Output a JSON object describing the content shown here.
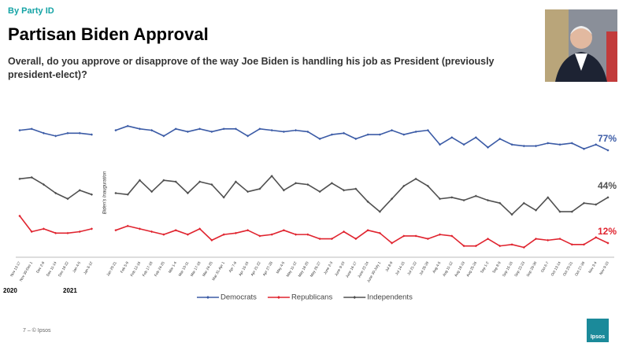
{
  "header": {
    "section": "By Party ID",
    "title": "Partisan Biden Approval",
    "question": "Overall, do you approve or disapprove of the way Joe Biden is handling his job as President (previously president-elect)?"
  },
  "chart_data": {
    "type": "line",
    "categories": [
      "Nov 13-17",
      "Nov 30-Dec 1",
      "Dec 2-8",
      "Dec 11-14",
      "Dec 18-22",
      "Jan 4-5",
      "Jan 8-12",
      null,
      "Jan 20-21",
      "Feb 5-9",
      "Feb 12-16",
      "Feb 17-18",
      "Feb 24-25",
      "Mar 1-4",
      "Mar 10-11",
      "Mar 17-18",
      "Mar 24-25",
      "Mar 31-Apr 1",
      "Apr 7-8",
      "Apr 15-16",
      "Apr 21-22",
      "Apr 27-28",
      "May 4-5",
      "May 11-12",
      "May 18-20",
      "May 26-27",
      "June 2-3",
      "June 9-10",
      "June 16-17",
      "June 22-24",
      "June 30-July 1",
      "Jul 8-9",
      "Jul 14-15",
      "Jul 21-22",
      "Jul 28-29",
      "Aug 4-5",
      "Aug 11-12",
      "Aug 18-19",
      "Aug 25-26",
      "Sep 1-2",
      "Sep 8-9",
      "Sep 15-16",
      "Sep 22-23",
      "Sep 29-30",
      "Oct 6-7",
      "Oct 13-14",
      "Oct 20-21",
      "Oct 27-28",
      "Nov 3-4",
      "Nov 9-10"
    ],
    "series": [
      {
        "name": "Democrats",
        "color": "#3b5ba6",
        "values": [
          91,
          92,
          89,
          87,
          89,
          89,
          88,
          null,
          91,
          94,
          92,
          91,
          87,
          92,
          90,
          92,
          90,
          92,
          92,
          87,
          92,
          91,
          90,
          91,
          90,
          85,
          88,
          89,
          85,
          88,
          88,
          91,
          88,
          90,
          91,
          81,
          86,
          81,
          86,
          79,
          85,
          81,
          80,
          80,
          82,
          81,
          82,
          78,
          81,
          77
        ],
        "value_labels": [
          null,
          null,
          null,
          null,
          null,
          null,
          null,
          null,
          null,
          null,
          null,
          null,
          null,
          null,
          null,
          null,
          null,
          null,
          null,
          null,
          null,
          null,
          null,
          null,
          null,
          null,
          null,
          null,
          null,
          null,
          null,
          null,
          null,
          null,
          null,
          null,
          null,
          null,
          null,
          null,
          null,
          null,
          null,
          null,
          null,
          null,
          null,
          null,
          null,
          "77%"
        ]
      },
      {
        "name": "Republicans",
        "color": "#e0242f",
        "values": [
          31,
          20,
          22,
          19,
          19,
          20,
          22,
          null,
          21,
          24,
          22,
          20,
          18,
          21,
          18,
          22,
          14,
          18,
          19,
          21,
          17,
          18,
          21,
          18,
          18,
          15,
          15,
          20,
          15,
          21,
          19,
          12,
          17,
          17,
          15,
          18,
          17,
          10,
          10,
          15,
          10,
          11,
          9,
          15,
          14,
          15,
          11,
          11,
          16,
          12
        ],
        "value_labels": [
          null,
          null,
          null,
          null,
          null,
          null,
          null,
          null,
          null,
          null,
          null,
          null,
          null,
          null,
          null,
          null,
          null,
          null,
          null,
          null,
          null,
          null,
          null,
          null,
          null,
          null,
          null,
          null,
          null,
          null,
          null,
          null,
          null,
          null,
          null,
          null,
          null,
          null,
          null,
          null,
          null,
          null,
          null,
          null,
          null,
          null,
          null,
          null,
          null,
          "12%"
        ]
      },
      {
        "name": "Independents",
        "color": "#505050",
        "values": [
          57,
          58,
          53,
          47,
          43,
          49,
          46,
          null,
          47,
          46,
          56,
          48,
          56,
          55,
          47,
          55,
          53,
          44,
          55,
          48,
          50,
          59,
          49,
          54,
          53,
          48,
          54,
          49,
          50,
          41,
          34,
          43,
          52,
          57,
          52,
          43,
          44,
          42,
          45,
          42,
          40,
          32,
          40,
          35,
          44,
          34,
          34,
          40,
          39,
          44
        ],
        "value_labels": [
          null,
          null,
          null,
          null,
          null,
          null,
          null,
          null,
          null,
          null,
          null,
          null,
          null,
          null,
          null,
          null,
          null,
          null,
          null,
          null,
          null,
          null,
          null,
          null,
          null,
          null,
          null,
          null,
          null,
          null,
          null,
          null,
          null,
          null,
          null,
          null,
          null,
          null,
          null,
          null,
          null,
          null,
          null,
          null,
          null,
          null,
          null,
          null,
          null,
          "44%"
        ]
      }
    ],
    "annotation": "Biden's Inauguration",
    "year_labels": [
      "2020",
      "2021"
    ],
    "legend": "bottom"
  },
  "footer": {
    "page": "7 – © Ipsos",
    "logo": "Ipsos"
  }
}
